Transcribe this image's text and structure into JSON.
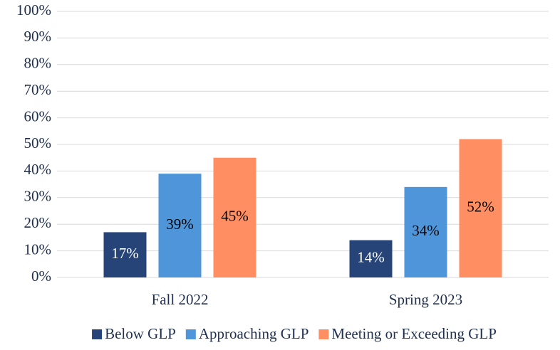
{
  "chart_data": {
    "type": "bar",
    "categories": [
      "Fall 2022",
      "Spring 2023"
    ],
    "series": [
      {
        "name": "Below GLP",
        "color": "#264478",
        "values": [
          17,
          14
        ],
        "value_labels": [
          "17%",
          "14%"
        ]
      },
      {
        "name": "Approaching GLP",
        "color": "#4e95d9",
        "values": [
          39,
          34
        ],
        "value_labels": [
          "39%",
          "34%"
        ]
      },
      {
        "name": "Meeting or Exceeding GLP",
        "color": "#ff8f62",
        "values": [
          45,
          52
        ],
        "value_labels": [
          "45%",
          "52%"
        ]
      }
    ],
    "ylim": [
      0,
      100
    ],
    "yticks": [
      {
        "value": 0,
        "label": "0%"
      },
      {
        "value": 10,
        "label": "10%"
      },
      {
        "value": 20,
        "label": "20%"
      },
      {
        "value": 30,
        "label": "30%"
      },
      {
        "value": 40,
        "label": "40%"
      },
      {
        "value": 50,
        "label": "50%"
      },
      {
        "value": 60,
        "label": "60%"
      },
      {
        "value": 70,
        "label": "70%"
      },
      {
        "value": 80,
        "label": "80%"
      },
      {
        "value": 90,
        "label": "90%"
      },
      {
        "value": 100,
        "label": "100%"
      }
    ],
    "grid": true,
    "legend": "bottom"
  }
}
